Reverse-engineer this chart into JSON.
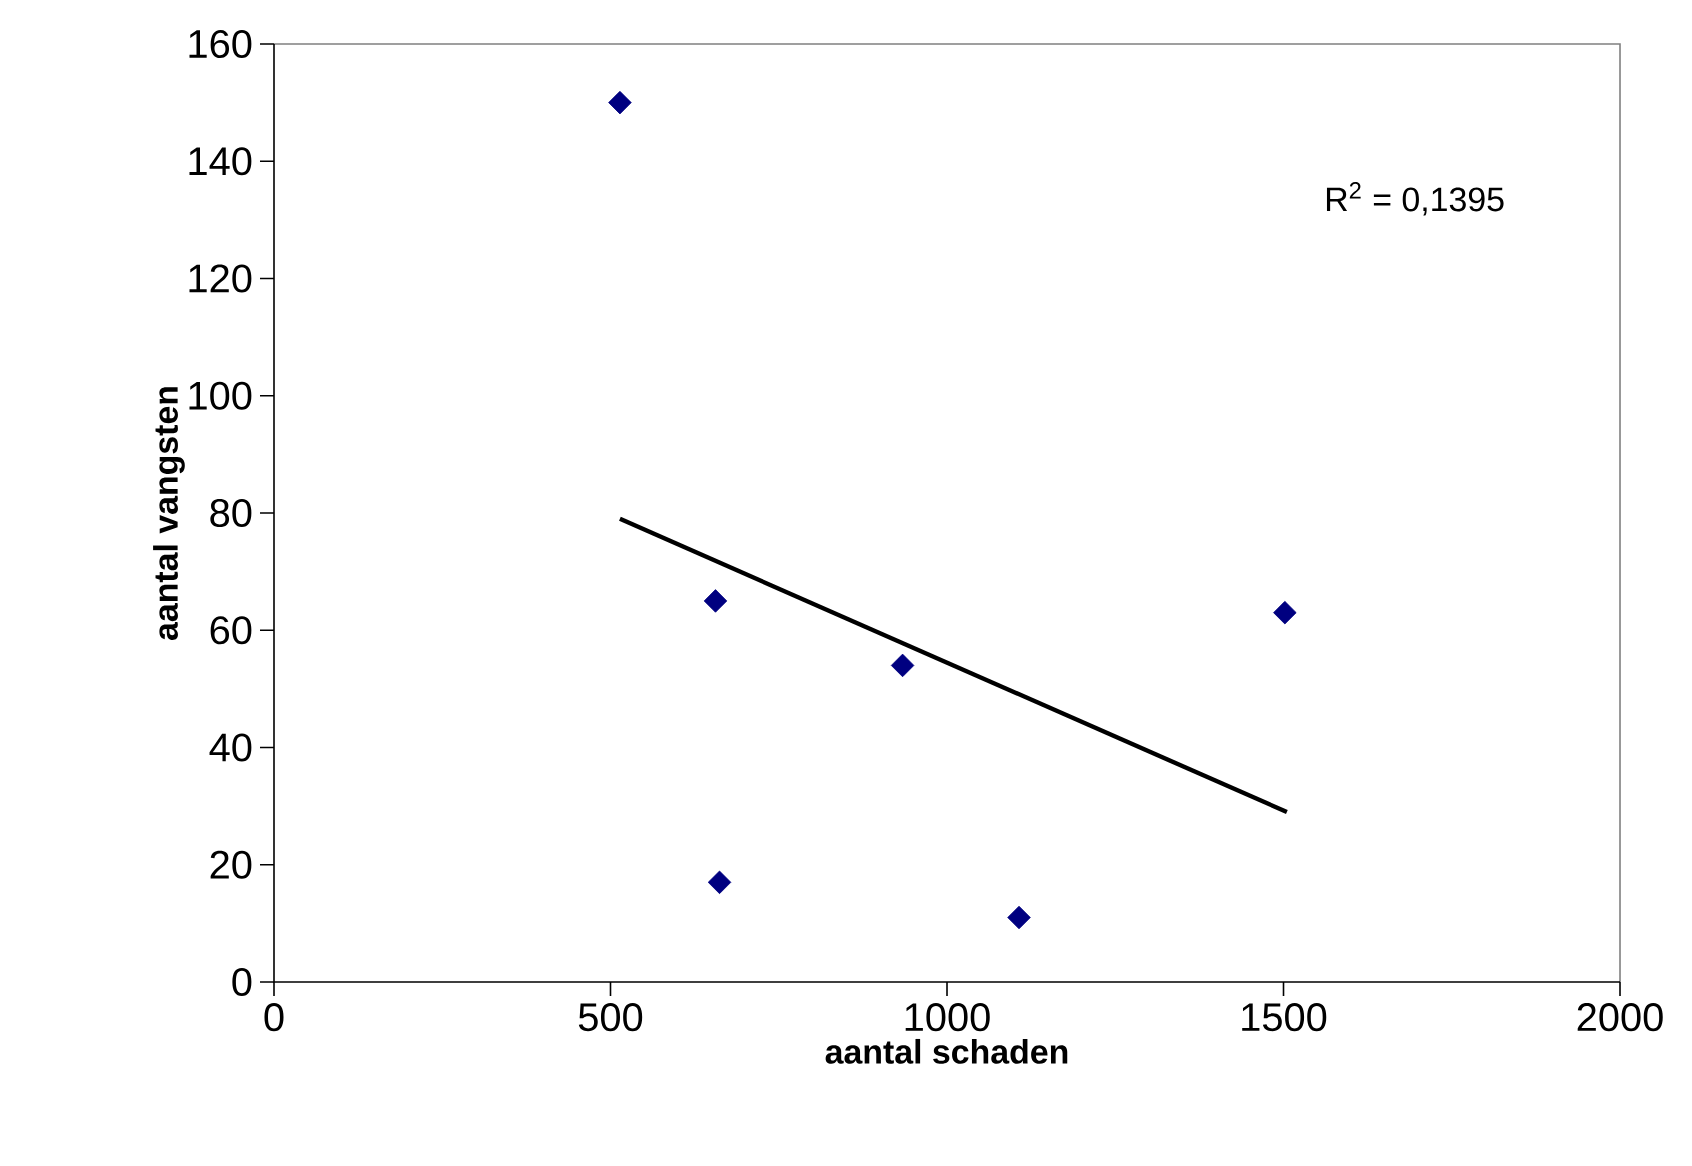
{
  "chart_data": {
    "type": "scatter",
    "xlabel": "aantal schaden",
    "ylabel": "aantal vangsten",
    "xlim": [
      0,
      2000
    ],
    "xticks": [
      0,
      500,
      1000,
      1500,
      2000
    ],
    "ylim": [
      0,
      160
    ],
    "yticks": [
      0,
      20,
      40,
      60,
      80,
      100,
      120,
      140,
      160
    ],
    "series": [
      {
        "color": "#000080",
        "marker": "diamond",
        "x": [
          514,
          656,
          662,
          934,
          1107,
          1502
        ],
        "values": [
          150,
          65,
          17,
          54,
          11,
          63
        ]
      },
      {
        "type": "line",
        "marker": "none",
        "color": "#000000",
        "x": [
          514,
          1505
        ],
        "values": [
          79,
          29
        ]
      }
    ],
    "grid": false,
    "annotations": [
      "R$^{2}$ = 0,1395"
    ]
  }
}
